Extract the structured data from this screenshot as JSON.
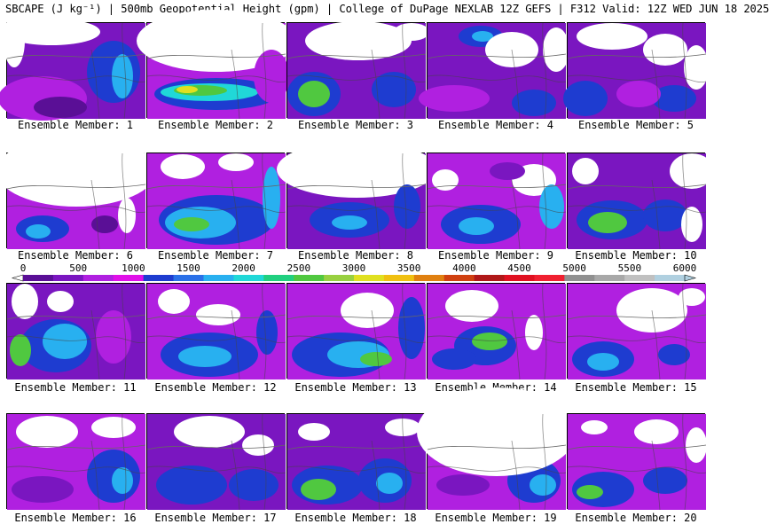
{
  "title": "SBCAPE (J kg⁻¹) | 500mb Geopotential Height (gpm) | College of DuPage NEXLAB 12Z GEFS | F312 Valid: 12Z WED JUN 18 2025",
  "colorbar": {
    "ticks": [
      "0",
      "500",
      "1000",
      "1500",
      "2000",
      "2500",
      "3000",
      "3500",
      "4000",
      "4500",
      "5000",
      "5500",
      "6000"
    ],
    "colors": [
      "#5a0f96",
      "#7a16c0",
      "#b020e0",
      "#e010e8",
      "#1e3cd0",
      "#2a70e8",
      "#28b0f0",
      "#20d8d8",
      "#20d080",
      "#50c840",
      "#98d040",
      "#e0e020",
      "#f0c010",
      "#e08010",
      "#d04010",
      "#b01818",
      "#e01020",
      "#f02030",
      "#909090",
      "#a8a8a8",
      "#c0c0c0",
      "#b0d0e0"
    ]
  },
  "panels": [
    {
      "label": "Ensemble Member: 1"
    },
    {
      "label": "Ensemble Member: 2"
    },
    {
      "label": "Ensemble Member: 3"
    },
    {
      "label": "Ensemble Member: 4"
    },
    {
      "label": "Ensemble Member: 5"
    },
    {
      "label": "Ensemble Member: 6"
    },
    {
      "label": "Ensemble Member: 7"
    },
    {
      "label": "Ensemble Member: 8"
    },
    {
      "label": "Ensemble Member: 9"
    },
    {
      "label": "Ensemble Member: 10"
    },
    {
      "label": "Ensemble Member: 11"
    },
    {
      "label": "Ensemble Member: 12"
    },
    {
      "label": "Ensemble Member: 13"
    },
    {
      "label": "Ensemble Member: 14"
    },
    {
      "label": "Ensemble Member: 15"
    },
    {
      "label": "Ensemble Member: 16"
    },
    {
      "label": "Ensemble Member: 17"
    },
    {
      "label": "Ensemble Member: 18"
    },
    {
      "label": "Ensemble Member: 19"
    },
    {
      "label": "Ensemble Member: 20"
    }
  ]
}
